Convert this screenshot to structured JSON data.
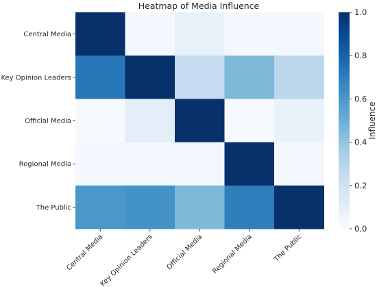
{
  "chart_data": {
    "type": "heatmap",
    "title": "Heatmap of Media Influence",
    "rows": [
      "Central Media",
      "Key Opinion Leaders",
      "Official Media",
      "Regional Media",
      "The Public"
    ],
    "columns": [
      "Central Media",
      "Key Opinion Leaders",
      "Official Media",
      "Regional Media",
      "The Public"
    ],
    "values": [
      [
        1.0,
        0.02,
        0.08,
        0.02,
        0.02
      ],
      [
        0.73,
        1.0,
        0.25,
        0.45,
        0.28
      ],
      [
        0.01,
        0.1,
        1.0,
        0.01,
        0.07
      ],
      [
        0.02,
        0.02,
        0.03,
        1.0,
        0.03
      ],
      [
        0.6,
        0.62,
        0.45,
        0.7,
        1.0
      ]
    ],
    "colorbar": {
      "label": "Influence",
      "range": [
        0.0,
        1.0
      ],
      "ticks": [
        "0.0",
        "0.2",
        "0.4",
        "0.6",
        "0.8",
        "1.0"
      ],
      "colormap": "Blues"
    }
  }
}
